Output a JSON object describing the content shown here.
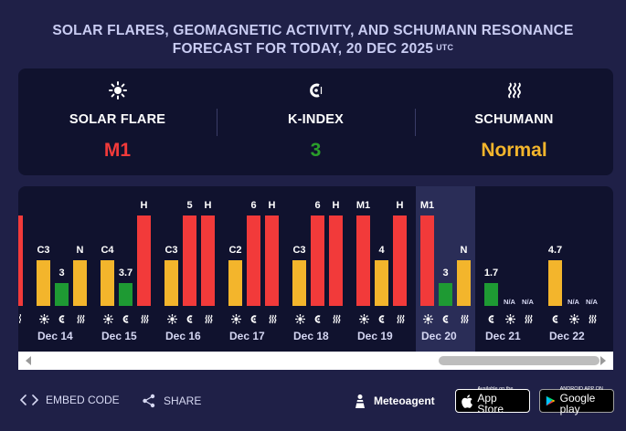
{
  "header": {
    "title_line1": "SOLAR FLARES, GEOMAGNETIC ACTIVITY, AND SCHUMANN RESONANCE",
    "title_line2": "FORECAST FOR TODAY, 20 DEC 2025",
    "title_sup": "UTC"
  },
  "summary": [
    {
      "label": "SOLAR FLARE",
      "value": "M1",
      "icon": "sun-icon",
      "color": "#f23a3a"
    },
    {
      "label": "K-INDEX",
      "value": "3",
      "icon": "magnet-icon",
      "color": "#2a9e2a"
    },
    {
      "label": "SCHUMANN",
      "value": "Normal",
      "icon": "waves-icon",
      "color": "#f3b52c"
    }
  ],
  "colors": {
    "red": "#f23a3a",
    "yellow": "#f3b52c",
    "green": "#1e9a33",
    "background": "#1f2047",
    "panel": "#10122e",
    "today_band": "#2a2d57"
  },
  "chart_data": {
    "type": "bar",
    "ylim": [
      0,
      1
    ],
    "series": [
      {
        "name": "SOLAR FLARE"
      },
      {
        "name": "K-INDEX"
      },
      {
        "name": "SCHUMANN"
      }
    ],
    "days": [
      {
        "date": "Dec 14",
        "bars": [
          {
            "metric": "flare",
            "label": "C3",
            "level": 0.5,
            "color": "#f3b52c"
          },
          {
            "metric": "kindex",
            "label": "3",
            "level": 0.25,
            "color": "#1e9a33"
          },
          {
            "metric": "schumann",
            "label": "N",
            "level": 0.5,
            "color": "#f3b52c"
          }
        ]
      },
      {
        "date": "Dec 15",
        "bars": [
          {
            "metric": "flare",
            "label": "C4",
            "level": 0.5,
            "color": "#f3b52c"
          },
          {
            "metric": "kindex",
            "label": "3.7",
            "level": 0.25,
            "color": "#1e9a33"
          },
          {
            "metric": "schumann",
            "label": "H",
            "level": 1.0,
            "color": "#f23a3a"
          }
        ]
      },
      {
        "date": "Dec 16",
        "bars": [
          {
            "metric": "flare",
            "label": "C3",
            "level": 0.5,
            "color": "#f3b52c"
          },
          {
            "metric": "kindex",
            "label": "5",
            "level": 1.0,
            "color": "#f23a3a"
          },
          {
            "metric": "schumann",
            "label": "H",
            "level": 1.0,
            "color": "#f23a3a"
          }
        ]
      },
      {
        "date": "Dec 17",
        "bars": [
          {
            "metric": "flare",
            "label": "C2",
            "level": 0.5,
            "color": "#f3b52c"
          },
          {
            "metric": "kindex",
            "label": "6",
            "level": 1.0,
            "color": "#f23a3a"
          },
          {
            "metric": "schumann",
            "label": "H",
            "level": 1.0,
            "color": "#f23a3a"
          }
        ]
      },
      {
        "date": "Dec 18",
        "bars": [
          {
            "metric": "flare",
            "label": "C3",
            "level": 0.5,
            "color": "#f3b52c"
          },
          {
            "metric": "kindex",
            "label": "6",
            "level": 1.0,
            "color": "#f23a3a"
          },
          {
            "metric": "schumann",
            "label": "H",
            "level": 1.0,
            "color": "#f23a3a"
          }
        ]
      },
      {
        "date": "Dec 19",
        "bars": [
          {
            "metric": "flare",
            "label": "M1",
            "level": 1.0,
            "color": "#f23a3a"
          },
          {
            "metric": "kindex",
            "label": "4",
            "level": 0.5,
            "color": "#f3b52c"
          },
          {
            "metric": "schumann",
            "label": "H",
            "level": 1.0,
            "color": "#f23a3a"
          }
        ]
      },
      {
        "date": "Dec 20",
        "today": true,
        "bars": [
          {
            "metric": "flare",
            "label": "M1",
            "level": 1.0,
            "color": "#f23a3a"
          },
          {
            "metric": "kindex",
            "label": "3",
            "level": 0.25,
            "color": "#1e9a33"
          },
          {
            "metric": "schumann",
            "label": "N",
            "level": 0.5,
            "color": "#f3b52c"
          }
        ]
      },
      {
        "date": "Dec 21",
        "bars": [
          {
            "metric": "kindex",
            "label": "1.7",
            "level": 0.25,
            "color": "#1e9a33"
          },
          {
            "metric": "flare",
            "label": "N/A",
            "level": 0,
            "color": "#f3b52c"
          },
          {
            "metric": "schumann",
            "label": "N/A",
            "level": 0,
            "color": "#f3b52c"
          }
        ]
      },
      {
        "date": "Dec 22",
        "bars": [
          {
            "metric": "kindex",
            "label": "4.7",
            "level": 0.5,
            "color": "#f3b52c"
          },
          {
            "metric": "flare",
            "label": "N/A",
            "level": 0,
            "color": "#f3b52c"
          },
          {
            "metric": "schumann",
            "label": "N/A",
            "level": 0,
            "color": "#f3b52c"
          }
        ]
      }
    ]
  },
  "footer": {
    "embed_label": "EMBED CODE",
    "share_label": "SHARE",
    "brand": "Meteoagent",
    "appstore_small": "Available on the",
    "appstore_big": "App Store",
    "googleplay_small": "ANDROID APP ON",
    "googleplay_big": "Google play"
  }
}
